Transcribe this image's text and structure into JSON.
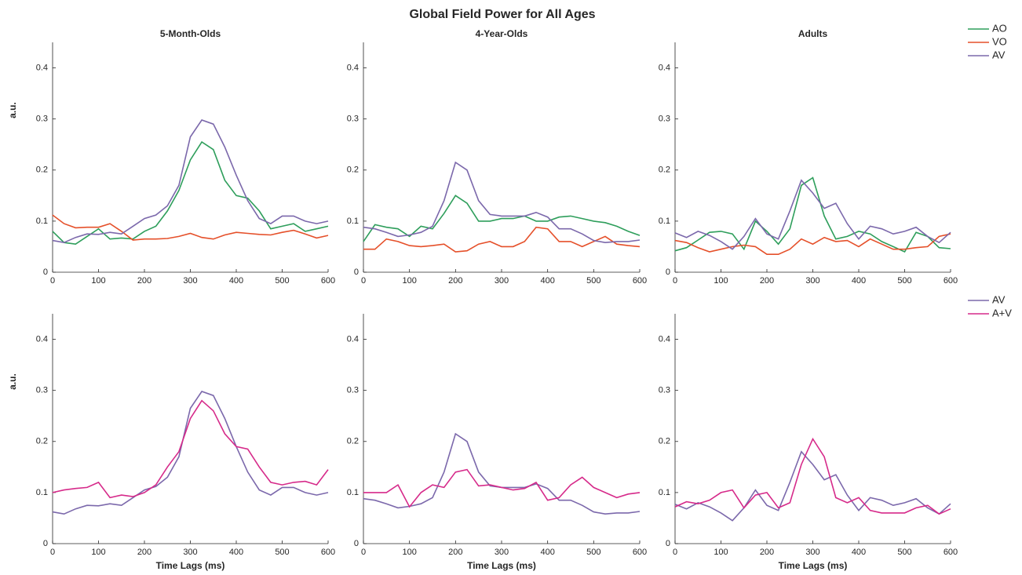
{
  "title": "Global Field Power for All Ages",
  "chart_data": [
    {
      "type": "line",
      "title": "5-Month-Olds",
      "ylabel": "a.u.",
      "x": [
        0,
        25,
        50,
        75,
        100,
        125,
        150,
        175,
        200,
        225,
        250,
        275,
        300,
        325,
        350,
        375,
        400,
        425,
        450,
        475,
        500,
        525,
        550,
        575,
        600
      ],
      "xlim": [
        0,
        600
      ],
      "xticks": [
        0,
        100,
        200,
        300,
        400,
        500,
        600
      ],
      "ylim": [
        0,
        0.45
      ],
      "yticks": [
        0,
        0.1,
        0.2,
        0.3,
        0.4
      ],
      "series": [
        {
          "name": "AO",
          "color": "#2e9e5b",
          "values": [
            0.08,
            0.058,
            0.055,
            0.07,
            0.085,
            0.065,
            0.067,
            0.065,
            0.08,
            0.09,
            0.12,
            0.16,
            0.22,
            0.255,
            0.24,
            0.18,
            0.15,
            0.145,
            0.12,
            0.085,
            0.09,
            0.095,
            0.08,
            0.085,
            0.09
          ]
        },
        {
          "name": "VO",
          "color": "#e5502a",
          "values": [
            0.112,
            0.095,
            0.087,
            0.088,
            0.088,
            0.095,
            0.08,
            0.063,
            0.065,
            0.065,
            0.066,
            0.07,
            0.076,
            0.068,
            0.065,
            0.073,
            0.078,
            0.076,
            0.074,
            0.073,
            0.078,
            0.082,
            0.075,
            0.067,
            0.072
          ]
        },
        {
          "name": "AV",
          "color": "#7b68ab",
          "values": [
            0.062,
            0.058,
            0.068,
            0.075,
            0.074,
            0.078,
            0.075,
            0.09,
            0.105,
            0.112,
            0.13,
            0.17,
            0.265,
            0.298,
            0.29,
            0.245,
            0.19,
            0.14,
            0.105,
            0.095,
            0.11,
            0.11,
            0.1,
            0.095,
            0.1
          ]
        }
      ]
    },
    {
      "type": "line",
      "title": "4-Year-Olds",
      "x": [
        0,
        25,
        50,
        75,
        100,
        125,
        150,
        175,
        200,
        225,
        250,
        275,
        300,
        325,
        350,
        375,
        400,
        425,
        450,
        475,
        500,
        525,
        550,
        575,
        600
      ],
      "xlim": [
        0,
        600
      ],
      "xticks": [
        0,
        100,
        200,
        300,
        400,
        500,
        600
      ],
      "ylim": [
        0,
        0.45
      ],
      "yticks": [
        0,
        0.1,
        0.2,
        0.3,
        0.4
      ],
      "series": [
        {
          "name": "AO",
          "color": "#2e9e5b",
          "values": [
            0.06,
            0.093,
            0.088,
            0.085,
            0.07,
            0.09,
            0.085,
            0.115,
            0.15,
            0.135,
            0.1,
            0.1,
            0.105,
            0.105,
            0.11,
            0.1,
            0.1,
            0.108,
            0.11,
            0.105,
            0.1,
            0.097,
            0.09,
            0.08,
            0.072
          ]
        },
        {
          "name": "VO",
          "color": "#e5502a",
          "values": [
            0.045,
            0.045,
            0.065,
            0.06,
            0.052,
            0.05,
            0.052,
            0.055,
            0.04,
            0.042,
            0.055,
            0.06,
            0.05,
            0.05,
            0.06,
            0.088,
            0.085,
            0.06,
            0.06,
            0.05,
            0.06,
            0.07,
            0.055,
            0.052,
            0.05
          ]
        },
        {
          "name": "AV",
          "color": "#7b68ab",
          "values": [
            0.088,
            0.085,
            0.078,
            0.07,
            0.073,
            0.078,
            0.09,
            0.14,
            0.215,
            0.2,
            0.14,
            0.113,
            0.11,
            0.11,
            0.11,
            0.117,
            0.108,
            0.085,
            0.085,
            0.075,
            0.062,
            0.058,
            0.06,
            0.06,
            0.063
          ]
        }
      ]
    },
    {
      "type": "line",
      "title": "Adults",
      "legend": "outside-right",
      "x": [
        0,
        25,
        50,
        75,
        100,
        125,
        150,
        175,
        200,
        225,
        250,
        275,
        300,
        325,
        350,
        375,
        400,
        425,
        450,
        475,
        500,
        525,
        550,
        575,
        600
      ],
      "xlim": [
        0,
        600
      ],
      "xticks": [
        0,
        100,
        200,
        300,
        400,
        500,
        600
      ],
      "ylim": [
        0,
        0.45
      ],
      "yticks": [
        0,
        0.1,
        0.2,
        0.3,
        0.4
      ],
      "series": [
        {
          "name": "AO",
          "color": "#2e9e5b",
          "values": [
            0.042,
            0.048,
            0.063,
            0.078,
            0.08,
            0.075,
            0.045,
            0.1,
            0.08,
            0.055,
            0.085,
            0.17,
            0.185,
            0.11,
            0.065,
            0.07,
            0.08,
            0.075,
            0.06,
            0.05,
            0.04,
            0.078,
            0.07,
            0.048,
            0.046
          ]
        },
        {
          "name": "VO",
          "color": "#e5502a",
          "values": [
            0.062,
            0.058,
            0.048,
            0.04,
            0.045,
            0.05,
            0.053,
            0.05,
            0.035,
            0.035,
            0.045,
            0.065,
            0.055,
            0.068,
            0.06,
            0.062,
            0.05,
            0.065,
            0.055,
            0.045,
            0.045,
            0.048,
            0.05,
            0.07,
            0.075
          ]
        },
        {
          "name": "AV",
          "color": "#7b68ab",
          "values": [
            0.077,
            0.068,
            0.08,
            0.072,
            0.06,
            0.045,
            0.07,
            0.105,
            0.075,
            0.065,
            0.12,
            0.18,
            0.155,
            0.125,
            0.135,
            0.095,
            0.065,
            0.09,
            0.085,
            0.075,
            0.08,
            0.088,
            0.07,
            0.058,
            0.078
          ]
        }
      ]
    },
    {
      "type": "line",
      "ylabel": "a.u.",
      "xlabel": "Time Lags (ms)",
      "x": [
        0,
        25,
        50,
        75,
        100,
        125,
        150,
        175,
        200,
        225,
        250,
        275,
        300,
        325,
        350,
        375,
        400,
        425,
        450,
        475,
        500,
        525,
        550,
        575,
        600
      ],
      "xlim": [
        0,
        600
      ],
      "xticks": [
        0,
        100,
        200,
        300,
        400,
        500,
        600
      ],
      "ylim": [
        0,
        0.45
      ],
      "yticks": [
        0,
        0.1,
        0.2,
        0.3,
        0.4
      ],
      "series": [
        {
          "name": "AV",
          "color": "#7b68ab",
          "values": [
            0.062,
            0.058,
            0.068,
            0.075,
            0.074,
            0.078,
            0.075,
            0.09,
            0.105,
            0.112,
            0.13,
            0.17,
            0.265,
            0.298,
            0.29,
            0.245,
            0.19,
            0.14,
            0.105,
            0.095,
            0.11,
            0.11,
            0.1,
            0.095,
            0.1
          ]
        },
        {
          "name": "A+V",
          "color": "#d62a8a",
          "values": [
            0.1,
            0.105,
            0.108,
            0.11,
            0.12,
            0.09,
            0.095,
            0.092,
            0.1,
            0.115,
            0.15,
            0.18,
            0.245,
            0.28,
            0.26,
            0.215,
            0.19,
            0.185,
            0.15,
            0.12,
            0.115,
            0.12,
            0.122,
            0.115,
            0.145
          ]
        }
      ]
    },
    {
      "type": "line",
      "xlabel": "Time Lags (ms)",
      "x": [
        0,
        25,
        50,
        75,
        100,
        125,
        150,
        175,
        200,
        225,
        250,
        275,
        300,
        325,
        350,
        375,
        400,
        425,
        450,
        475,
        500,
        525,
        550,
        575,
        600
      ],
      "xlim": [
        0,
        600
      ],
      "xticks": [
        0,
        100,
        200,
        300,
        400,
        500,
        600
      ],
      "ylim": [
        0,
        0.45
      ],
      "yticks": [
        0,
        0.1,
        0.2,
        0.3,
        0.4
      ],
      "series": [
        {
          "name": "AV",
          "color": "#7b68ab",
          "values": [
            0.088,
            0.085,
            0.078,
            0.07,
            0.073,
            0.078,
            0.09,
            0.14,
            0.215,
            0.2,
            0.14,
            0.113,
            0.11,
            0.11,
            0.11,
            0.117,
            0.108,
            0.085,
            0.085,
            0.075,
            0.062,
            0.058,
            0.06,
            0.06,
            0.063
          ]
        },
        {
          "name": "A+V",
          "color": "#d62a8a",
          "values": [
            0.1,
            0.1,
            0.1,
            0.115,
            0.072,
            0.1,
            0.115,
            0.11,
            0.14,
            0.145,
            0.113,
            0.115,
            0.11,
            0.105,
            0.108,
            0.12,
            0.085,
            0.09,
            0.115,
            0.13,
            0.11,
            0.1,
            0.09,
            0.097,
            0.1
          ]
        }
      ]
    },
    {
      "type": "line",
      "xlabel": "Time Lags (ms)",
      "legend": "outside-right",
      "x": [
        0,
        25,
        50,
        75,
        100,
        125,
        150,
        175,
        200,
        225,
        250,
        275,
        300,
        325,
        350,
        375,
        400,
        425,
        450,
        475,
        500,
        525,
        550,
        575,
        600
      ],
      "xlim": [
        0,
        600
      ],
      "xticks": [
        0,
        100,
        200,
        300,
        400,
        500,
        600
      ],
      "ylim": [
        0,
        0.45
      ],
      "yticks": [
        0,
        0.1,
        0.2,
        0.3,
        0.4
      ],
      "series": [
        {
          "name": "AV",
          "color": "#7b68ab",
          "values": [
            0.077,
            0.068,
            0.08,
            0.072,
            0.06,
            0.045,
            0.07,
            0.105,
            0.075,
            0.065,
            0.12,
            0.18,
            0.155,
            0.125,
            0.135,
            0.095,
            0.065,
            0.09,
            0.085,
            0.075,
            0.08,
            0.088,
            0.07,
            0.058,
            0.078
          ]
        },
        {
          "name": "A+V",
          "color": "#d62a8a",
          "values": [
            0.072,
            0.082,
            0.078,
            0.085,
            0.1,
            0.105,
            0.07,
            0.095,
            0.1,
            0.07,
            0.08,
            0.155,
            0.205,
            0.17,
            0.09,
            0.08,
            0.09,
            0.065,
            0.06,
            0.06,
            0.06,
            0.07,
            0.075,
            0.058,
            0.068
          ]
        }
      ]
    }
  ]
}
